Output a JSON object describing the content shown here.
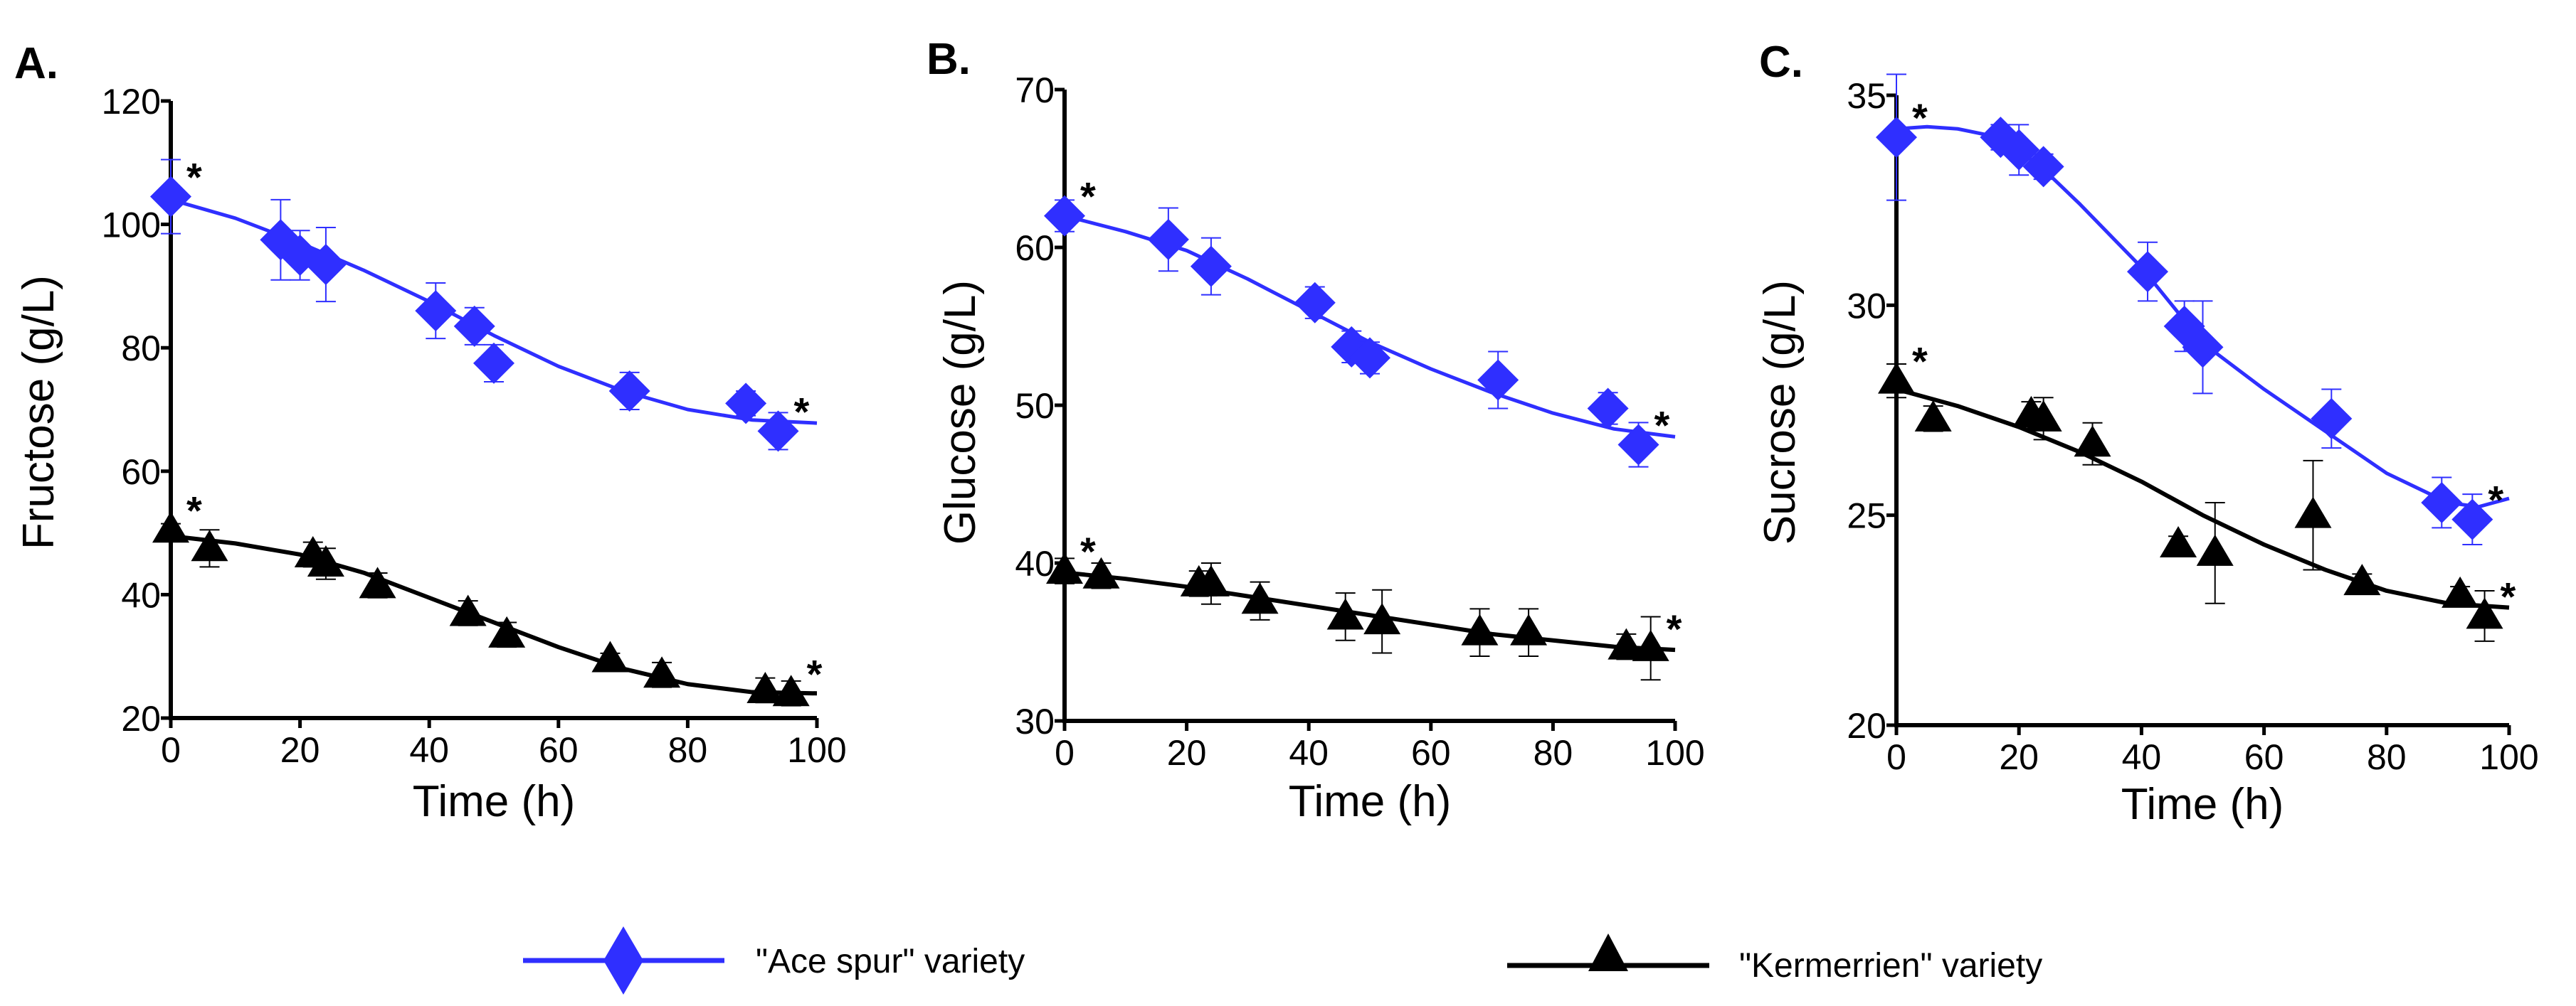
{
  "colors": {
    "ace": "#2F2FFF",
    "kermerrien": "#000000"
  },
  "legend": {
    "items": [
      {
        "label": "\"Ace spur\" variety",
        "marker": "diamond",
        "color": "#2F2FFF"
      },
      {
        "label": "\"Kermerrien\" variety",
        "marker": "triangle",
        "color": "#000000"
      }
    ],
    "placement": "bottom-center"
  },
  "chart_data": [
    {
      "type": "scatter",
      "panel_label": "A.",
      "xlabel": "Time (h)",
      "ylabel": "Fructose  (g/L)",
      "xlim": [
        0,
        100
      ],
      "ylim": [
        20,
        120
      ],
      "xticks": [
        "0",
        "20",
        "40",
        "60",
        "80",
        "100"
      ],
      "yticks": [
        "20",
        "40",
        "60",
        "80",
        "100",
        "120"
      ],
      "series": [
        {
          "name": "\"Ace spur\" variety",
          "marker": "diamond",
          "x": [
            0,
            17,
            20,
            24,
            41,
            47,
            50,
            71,
            89,
            94
          ],
          "y": [
            104.5,
            97.5,
            95,
            93.5,
            86,
            83.5,
            77.5,
            73,
            71,
            66.5
          ],
          "err": [
            6,
            6.5,
            4,
            6,
            4.5,
            3,
            3,
            3,
            2,
            3
          ],
          "significant": [
            true,
            false,
            false,
            false,
            false,
            false,
            false,
            false,
            false,
            true
          ],
          "fit_x": [
            0,
            10,
            20,
            30,
            40,
            50,
            60,
            70,
            80,
            90,
            100
          ],
          "fit_y": [
            104,
            101,
            97,
            92.5,
            87.5,
            82,
            77,
            73,
            70,
            68.3,
            67.8
          ]
        },
        {
          "name": "\"Kermerrien\" variety",
          "marker": "triangle",
          "x": [
            0,
            6,
            22,
            24,
            32,
            46,
            52,
            68,
            76,
            92,
            96
          ],
          "y": [
            50.5,
            47.5,
            46.5,
            45,
            41.5,
            37,
            33.5,
            29.5,
            27,
            24.5,
            24
          ],
          "err": [
            1,
            3,
            2,
            2.5,
            2,
            2,
            2,
            1,
            2,
            2,
            2
          ],
          "significant": [
            true,
            false,
            false,
            false,
            false,
            false,
            false,
            false,
            false,
            false,
            true
          ],
          "fit_x": [
            0,
            10,
            20,
            30,
            40,
            50,
            60,
            70,
            80,
            90,
            100
          ],
          "fit_y": [
            49.5,
            48.3,
            46.5,
            43.5,
            39.5,
            35.5,
            31.5,
            28,
            25.5,
            24.2,
            24
          ]
        }
      ]
    },
    {
      "type": "scatter",
      "panel_label": "B.",
      "xlabel": "Time (h)",
      "ylabel": "Glucose  (g/L)",
      "xlim": [
        0,
        100
      ],
      "ylim": [
        30,
        70
      ],
      "xticks": [
        "0",
        "20",
        "40",
        "60",
        "80",
        "100"
      ],
      "yticks": [
        "30",
        "40",
        "50",
        "60",
        "70"
      ],
      "series": [
        {
          "name": "\"Ace spur\" variety",
          "marker": "diamond",
          "x": [
            0,
            17,
            24,
            41,
            47,
            50,
            71,
            89,
            94
          ],
          "y": [
            62,
            60.5,
            58.8,
            56.5,
            53.7,
            53,
            51.6,
            49.8,
            47.5
          ],
          "err": [
            1,
            2,
            1.8,
            1,
            1,
            1,
            1.8,
            1,
            1.4
          ],
          "significant": [
            true,
            false,
            false,
            false,
            false,
            false,
            false,
            false,
            true
          ],
          "fit_x": [
            0,
            10,
            20,
            30,
            40,
            50,
            60,
            70,
            80,
            90,
            100
          ],
          "fit_y": [
            62,
            61,
            59.8,
            58,
            56,
            54,
            52.3,
            50.8,
            49.5,
            48.5,
            48
          ]
        },
        {
          "name": "\"Kermerrien\" variety",
          "marker": "triangle",
          "x": [
            0,
            6,
            22,
            24,
            32,
            46,
            52,
            68,
            76,
            92,
            96
          ],
          "y": [
            39.5,
            39.2,
            38.7,
            38.7,
            37.6,
            36.6,
            36.3,
            35.6,
            35.6,
            34.7,
            34.6
          ],
          "err": [
            0.8,
            0.8,
            0.8,
            1.3,
            1.2,
            1.5,
            2,
            1.5,
            1.5,
            0.8,
            2
          ],
          "significant": [
            true,
            false,
            false,
            false,
            false,
            false,
            false,
            false,
            false,
            false,
            true
          ],
          "fit_x": [
            0,
            10,
            20,
            30,
            40,
            50,
            60,
            70,
            80,
            90,
            100
          ],
          "fit_y": [
            39.4,
            39,
            38.5,
            37.9,
            37.3,
            36.7,
            36.1,
            35.5,
            35.1,
            34.7,
            34.5
          ]
        }
      ]
    },
    {
      "type": "scatter",
      "panel_label": "C.",
      "xlabel": "Time (h)",
      "ylabel": "Sucrose  (g/L)",
      "xlim": [
        0,
        100
      ],
      "ylim": [
        20,
        35
      ],
      "xticks": [
        "0",
        "20",
        "40",
        "60",
        "80",
        "100"
      ],
      "yticks": [
        "20",
        "25",
        "30",
        "35"
      ],
      "series": [
        {
          "name": "\"Ace spur\" variety",
          "marker": "diamond",
          "x": [
            0,
            17,
            20,
            24,
            41,
            47,
            50,
            71,
            89,
            94
          ],
          "y": [
            34,
            34,
            33.7,
            33.3,
            30.8,
            29.5,
            29,
            27.3,
            25.3,
            24.9
          ],
          "err": [
            1.5,
            0.3,
            0.6,
            0.3,
            0.7,
            0.6,
            1.1,
            0.7,
            0.6,
            0.6
          ],
          "significant": [
            true,
            false,
            false,
            false,
            false,
            false,
            false,
            false,
            false,
            true
          ],
          "fit_x": [
            0,
            5,
            10,
            15,
            20,
            25,
            30,
            40,
            50,
            60,
            70,
            80,
            90,
            95,
            100
          ],
          "fit_y": [
            34.2,
            34.25,
            34.2,
            34.05,
            33.7,
            33.1,
            32.4,
            30.9,
            29.1,
            28,
            27,
            26,
            25.3,
            25.2,
            25.4
          ]
        },
        {
          "name": "\"Kermerrien\" variety",
          "marker": "triangle",
          "x": [
            0,
            6,
            22,
            24,
            32,
            46,
            52,
            68,
            76,
            92,
            96
          ],
          "y": [
            28.2,
            27.3,
            27.4,
            27.3,
            26.7,
            24.3,
            24.1,
            25,
            23.4,
            23.1,
            22.6
          ],
          "err": [
            0.4,
            0.3,
            0.3,
            0.5,
            0.5,
            0.2,
            1.2,
            1.3,
            0.2,
            0.2,
            0.6
          ],
          "significant": [
            true,
            false,
            false,
            false,
            false,
            false,
            false,
            false,
            false,
            false,
            true
          ],
          "fit_x": [
            0,
            10,
            20,
            30,
            40,
            50,
            60,
            70,
            80,
            90,
            100
          ],
          "fit_y": [
            28,
            27.6,
            27.1,
            26.5,
            25.8,
            25,
            24.3,
            23.7,
            23.2,
            22.9,
            22.8
          ]
        }
      ]
    }
  ]
}
